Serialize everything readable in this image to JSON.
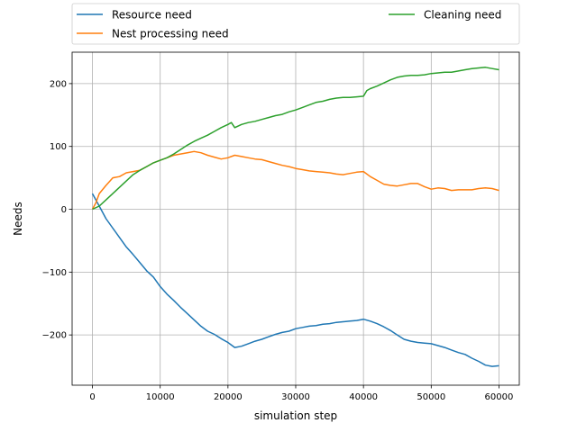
{
  "chart_data": {
    "type": "line",
    "title": "",
    "xlabel": "simulation step",
    "ylabel": "Needs",
    "xlim": [
      -3000,
      63000
    ],
    "ylim": [
      -280,
      250
    ],
    "xticks": [
      0,
      10000,
      20000,
      30000,
      40000,
      50000,
      60000
    ],
    "xtick_labels": [
      "0",
      "10000",
      "20000",
      "30000",
      "40000",
      "50000",
      "60000"
    ],
    "yticks": [
      -200,
      -100,
      0,
      100,
      200
    ],
    "ytick_labels": [
      "−200",
      "−100",
      "0",
      "100",
      "200"
    ],
    "grid": true,
    "legend_position": "top (above plot, two columns)",
    "series": [
      {
        "name": "Resource need",
        "color": "#1f77b4",
        "x": [
          0,
          1000,
          2000,
          3000,
          4000,
          5000,
          6000,
          7000,
          8000,
          9000,
          10000,
          11000,
          12000,
          13000,
          14000,
          15000,
          16000,
          17000,
          18000,
          19000,
          20000,
          21000,
          22000,
          23000,
          24000,
          25000,
          26000,
          27000,
          28000,
          29000,
          30000,
          31000,
          32000,
          33000,
          34000,
          35000,
          36000,
          37000,
          38000,
          39000,
          40000,
          41000,
          42000,
          43000,
          44000,
          45000,
          46000,
          47000,
          48000,
          49000,
          50000,
          51000,
          52000,
          53000,
          54000,
          55000,
          56000,
          57000,
          58000,
          59000,
          60000
        ],
        "y": [
          25,
          5,
          -15,
          -30,
          -45,
          -60,
          -72,
          -85,
          -98,
          -108,
          -123,
          -135,
          -145,
          -156,
          -166,
          -176,
          -186,
          -194,
          -199,
          -206,
          -212,
          -220,
          -218,
          -214,
          -210,
          -207,
          -203,
          -199,
          -196,
          -194,
          -190,
          -188,
          -186,
          -185,
          -183,
          -182,
          -180,
          -179,
          -178,
          -177,
          -175,
          -178,
          -182,
          -187,
          -193,
          -200,
          -207,
          -210,
          -212,
          -213,
          -214,
          -217,
          -220,
          -224,
          -228,
          -231,
          -237,
          -242,
          -248,
          -250,
          -249
        ]
      },
      {
        "name": "Nest processing need",
        "color": "#ff7f0e",
        "x": [
          0,
          500,
          1000,
          2000,
          3000,
          4000,
          5000,
          6000,
          7000,
          8000,
          9000,
          10000,
          11000,
          12000,
          13000,
          14000,
          15000,
          16000,
          17000,
          18000,
          19000,
          20000,
          21000,
          22000,
          23000,
          24000,
          25000,
          26000,
          27000,
          28000,
          29000,
          30000,
          31000,
          32000,
          33000,
          34000,
          35000,
          36000,
          37000,
          38000,
          39000,
          40000,
          41000,
          42000,
          43000,
          44000,
          45000,
          46000,
          47000,
          48000,
          49000,
          50000,
          51000,
          52000,
          53000,
          54000,
          55000,
          56000,
          57000,
          58000,
          59000,
          60000
        ],
        "y": [
          0,
          10,
          25,
          38,
          50,
          52,
          58,
          60,
          62,
          68,
          74,
          78,
          82,
          86,
          88,
          90,
          92,
          90,
          86,
          83,
          80,
          82,
          86,
          84,
          82,
          80,
          79,
          76,
          73,
          70,
          68,
          65,
          63,
          61,
          60,
          59,
          58,
          56,
          55,
          57,
          59,
          60,
          52,
          46,
          40,
          38,
          37,
          39,
          41,
          41,
          36,
          32,
          34,
          33,
          30,
          31,
          31,
          31,
          33,
          34,
          33,
          30
        ]
      },
      {
        "name": "Cleaning need",
        "color": "#2ca02c",
        "x": [
          0,
          1000,
          2000,
          3000,
          4000,
          5000,
          6000,
          7000,
          8000,
          9000,
          10000,
          11000,
          12000,
          13000,
          14000,
          15000,
          16000,
          17000,
          18000,
          19000,
          20000,
          20500,
          21000,
          22000,
          23000,
          24000,
          25000,
          26000,
          27000,
          28000,
          29000,
          30000,
          31000,
          32000,
          33000,
          34000,
          35000,
          36000,
          37000,
          38000,
          39000,
          40000,
          40500,
          41000,
          42000,
          43000,
          44000,
          45000,
          46000,
          47000,
          48000,
          49000,
          50000,
          51000,
          52000,
          53000,
          54000,
          55000,
          56000,
          57000,
          58000,
          59000,
          60000
        ],
        "y": [
          0,
          5,
          15,
          25,
          35,
          45,
          55,
          62,
          68,
          74,
          78,
          82,
          88,
          95,
          102,
          108,
          113,
          118,
          124,
          130,
          135,
          138,
          130,
          135,
          138,
          140,
          143,
          146,
          149,
          151,
          155,
          158,
          162,
          166,
          170,
          172,
          175,
          177,
          178,
          178,
          179,
          180,
          189,
          192,
          196,
          201,
          206,
          210,
          212,
          213,
          213,
          214,
          216,
          217,
          218,
          218,
          220,
          222,
          224,
          225,
          226,
          224,
          222
        ]
      }
    ]
  }
}
